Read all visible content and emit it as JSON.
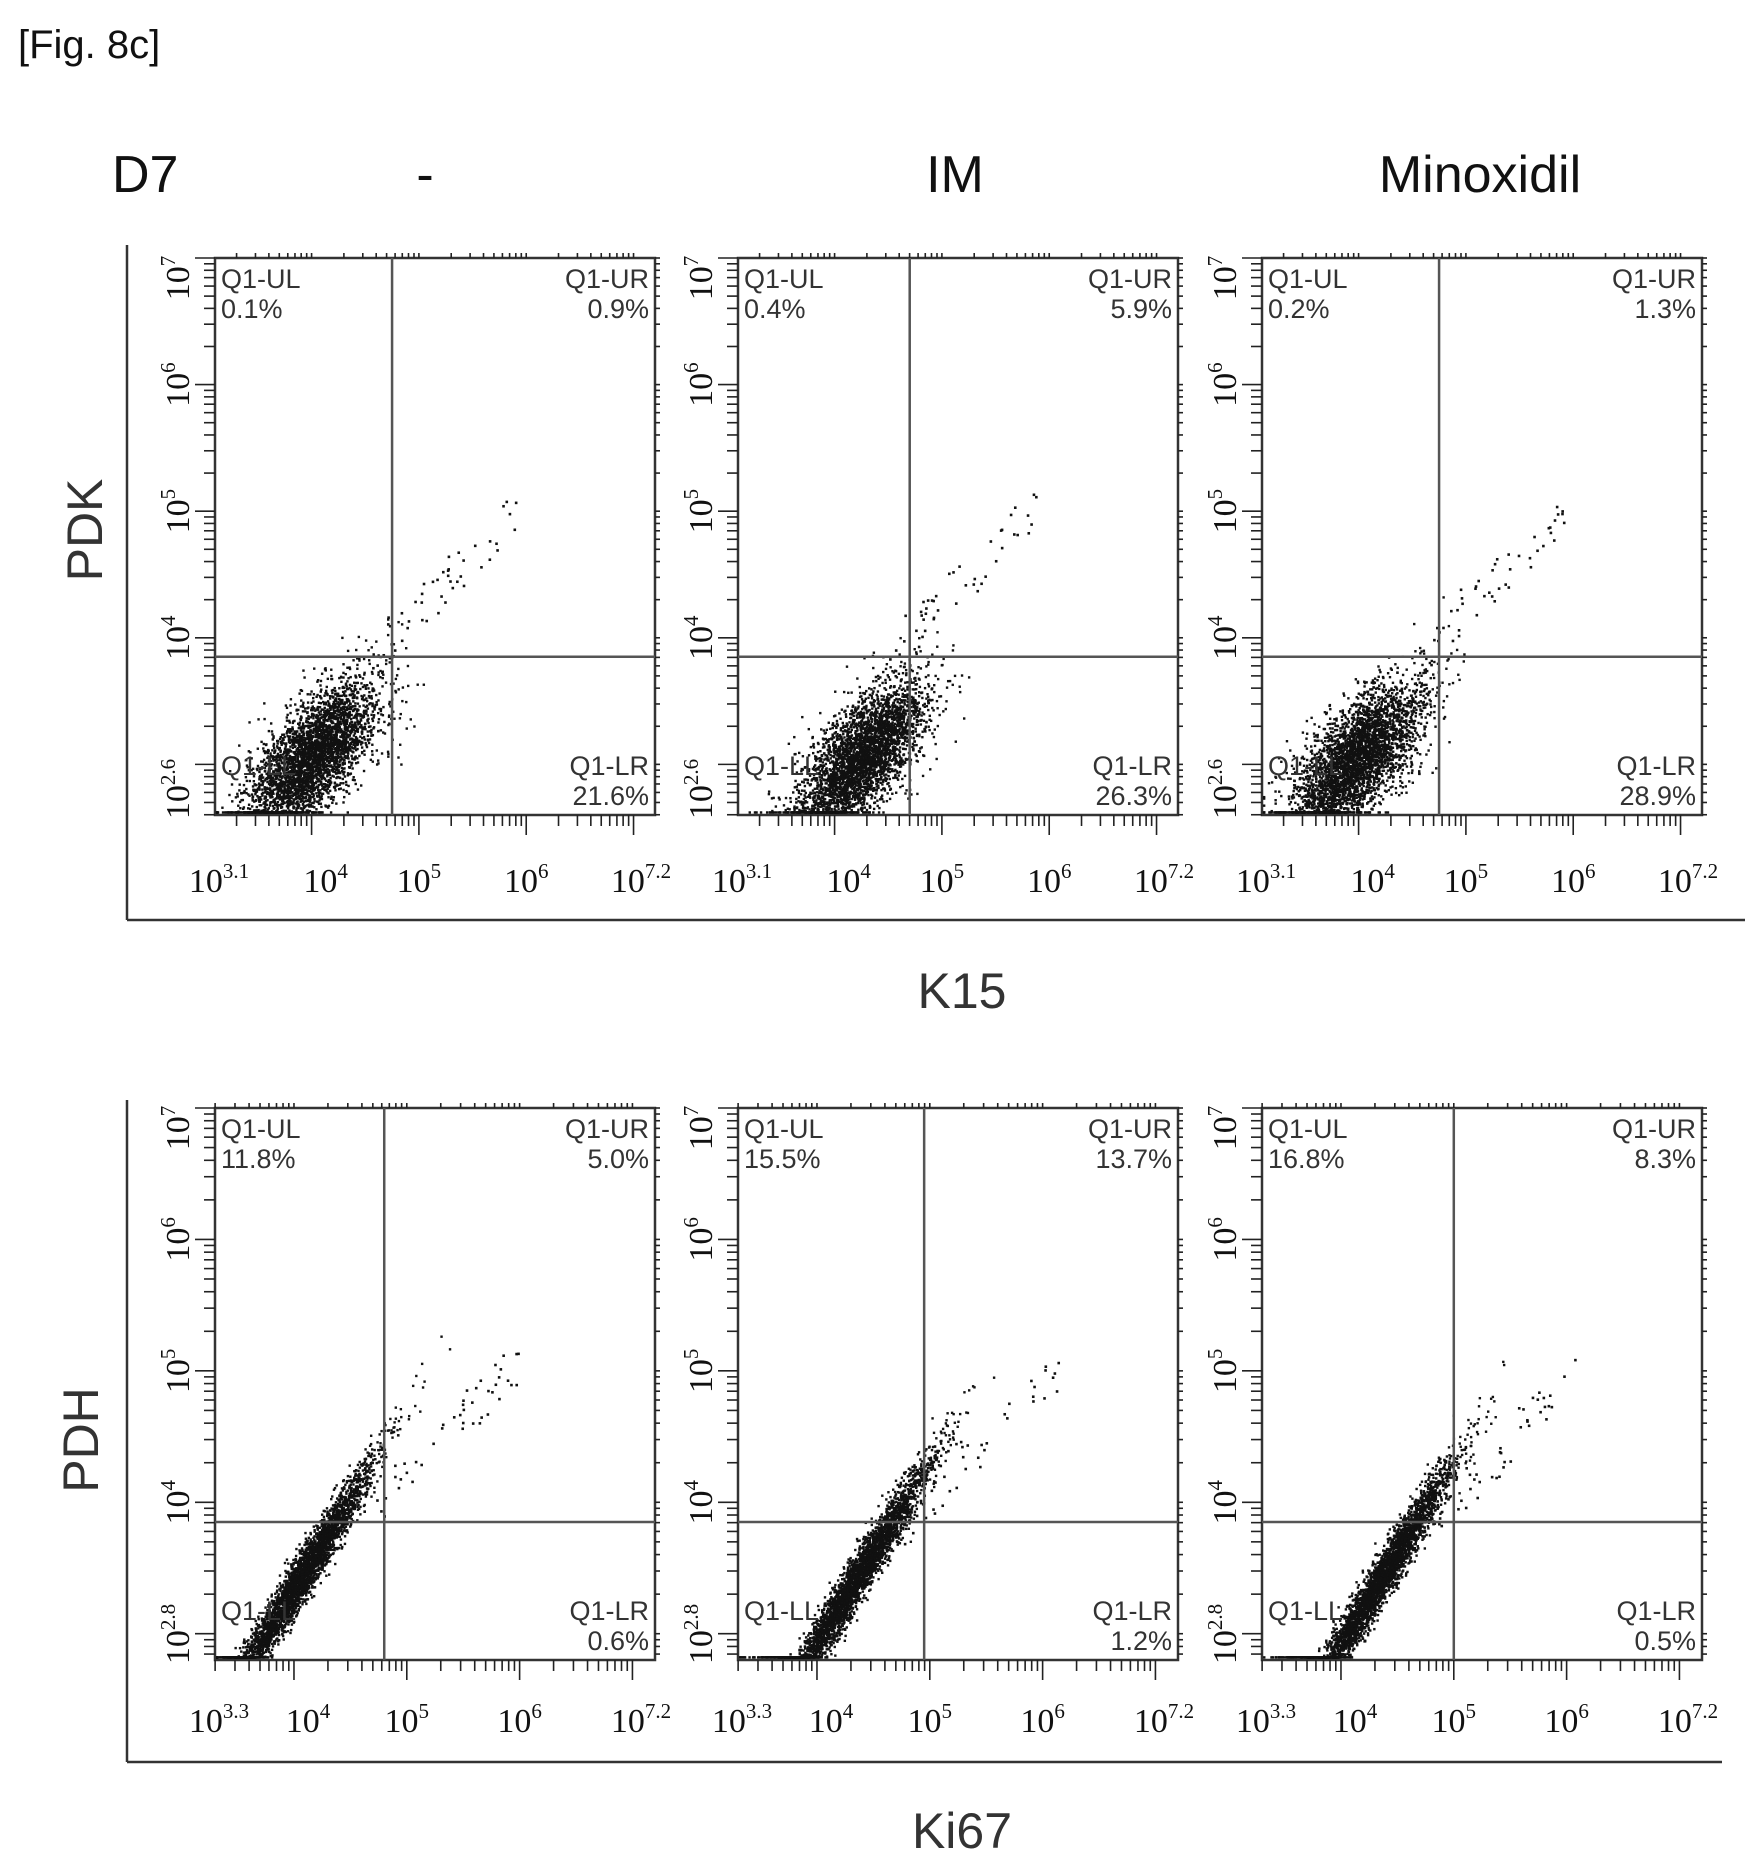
{
  "figure_label": "[Fig. 8c]",
  "day_label": "D7",
  "chart_data": [
    {
      "type": "scatter",
      "condition": "-",
      "row": 0,
      "col": 0,
      "xlabel": "K15",
      "ylabel": "PDK",
      "x_range_log10": [
        3.1,
        7.2
      ],
      "y_range_log10": [
        2.6,
        7.0
      ],
      "x_ticks": [
        {
          "base": "10",
          "exp": "3.1",
          "v": 3.1
        },
        {
          "base": "10",
          "exp": "4",
          "v": 4
        },
        {
          "base": "10",
          "exp": "5",
          "v": 5
        },
        {
          "base": "10",
          "exp": "6",
          "v": 6
        },
        {
          "base": "10",
          "exp": "7.2",
          "v": 7.2
        }
      ],
      "y_ticks": [
        {
          "base": "10",
          "exp": "2.6",
          "v": 2.6
        },
        {
          "base": "10",
          "exp": "4",
          "v": 4
        },
        {
          "base": "10",
          "exp": "5",
          "v": 5
        },
        {
          "base": "10",
          "exp": "6",
          "v": 6
        },
        {
          "base": "10",
          "exp": "7",
          "v": 7
        }
      ],
      "gate_x_log10": 4.75,
      "gate_y_log10": 3.85,
      "quadrants": {
        "UL": {
          "name": "Q1-UL",
          "value": "0.1%"
        },
        "UR": {
          "name": "Q1-UR",
          "value": "0.9%"
        },
        "LL": {
          "name": "Q1-LL",
          "value": ""
        },
        "LR": {
          "name": "Q1-LR",
          "value": "21.6%"
        }
      }
    },
    {
      "type": "scatter",
      "condition": "IM",
      "row": 0,
      "col": 1,
      "xlabel": "K15",
      "ylabel": "PDK",
      "x_range_log10": [
        3.1,
        7.2
      ],
      "y_range_log10": [
        2.6,
        7.0
      ],
      "x_ticks": [
        {
          "base": "10",
          "exp": "3.1",
          "v": 3.1
        },
        {
          "base": "10",
          "exp": "4",
          "v": 4
        },
        {
          "base": "10",
          "exp": "5",
          "v": 5
        },
        {
          "base": "10",
          "exp": "6",
          "v": 6
        },
        {
          "base": "10",
          "exp": "7.2",
          "v": 7.2
        }
      ],
      "y_ticks": [
        {
          "base": "10",
          "exp": "2.6",
          "v": 2.6
        },
        {
          "base": "10",
          "exp": "4",
          "v": 4
        },
        {
          "base": "10",
          "exp": "5",
          "v": 5
        },
        {
          "base": "10",
          "exp": "6",
          "v": 6
        },
        {
          "base": "10",
          "exp": "7",
          "v": 7
        }
      ],
      "gate_x_log10": 4.7,
      "gate_y_log10": 3.85,
      "quadrants": {
        "UL": {
          "name": "Q1-UL",
          "value": "0.4%"
        },
        "UR": {
          "name": "Q1-UR",
          "value": "5.9%"
        },
        "LL": {
          "name": "Q1-LL",
          "value": ""
        },
        "LR": {
          "name": "Q1-LR",
          "value": "26.3%"
        }
      }
    },
    {
      "type": "scatter",
      "condition": "Minoxidil",
      "row": 0,
      "col": 2,
      "xlabel": "K15",
      "ylabel": "PDK",
      "x_range_log10": [
        3.1,
        7.2
      ],
      "y_range_log10": [
        2.6,
        7.0
      ],
      "x_ticks": [
        {
          "base": "10",
          "exp": "3.1",
          "v": 3.1
        },
        {
          "base": "10",
          "exp": "4",
          "v": 4
        },
        {
          "base": "10",
          "exp": "5",
          "v": 5
        },
        {
          "base": "10",
          "exp": "6",
          "v": 6
        },
        {
          "base": "10",
          "exp": "7.2",
          "v": 7.2
        }
      ],
      "y_ticks": [
        {
          "base": "10",
          "exp": "2.6",
          "v": 2.6
        },
        {
          "base": "10",
          "exp": "4",
          "v": 4
        },
        {
          "base": "10",
          "exp": "5",
          "v": 5
        },
        {
          "base": "10",
          "exp": "6",
          "v": 6
        },
        {
          "base": "10",
          "exp": "7",
          "v": 7
        }
      ],
      "gate_x_log10": 4.75,
      "gate_y_log10": 3.85,
      "quadrants": {
        "UL": {
          "name": "Q1-UL",
          "value": "0.2%"
        },
        "UR": {
          "name": "Q1-UR",
          "value": "1.3%"
        },
        "LL": {
          "name": "Q1-LL",
          "value": ""
        },
        "LR": {
          "name": "Q1-LR",
          "value": "28.9%"
        }
      }
    },
    {
      "type": "scatter",
      "condition": "-",
      "row": 1,
      "col": 0,
      "xlabel": "Ki67",
      "ylabel": "PDH",
      "x_range_log10": [
        3.3,
        7.2
      ],
      "y_range_log10": [
        2.8,
        7.0
      ],
      "x_ticks": [
        {
          "base": "10",
          "exp": "3.3",
          "v": 3.3
        },
        {
          "base": "10",
          "exp": "4",
          "v": 4
        },
        {
          "base": "10",
          "exp": "5",
          "v": 5
        },
        {
          "base": "10",
          "exp": "6",
          "v": 6
        },
        {
          "base": "10",
          "exp": "7.2",
          "v": 7.2
        }
      ],
      "y_ticks": [
        {
          "base": "10",
          "exp": "2.8",
          "v": 2.8
        },
        {
          "base": "10",
          "exp": "4",
          "v": 4
        },
        {
          "base": "10",
          "exp": "5",
          "v": 5
        },
        {
          "base": "10",
          "exp": "6",
          "v": 6
        },
        {
          "base": "10",
          "exp": "7",
          "v": 7
        }
      ],
      "gate_x_log10": 4.8,
      "gate_y_log10": 3.85,
      "quadrants": {
        "UL": {
          "name": "Q1-UL",
          "value": "11.8%"
        },
        "UR": {
          "name": "Q1-UR",
          "value": "5.0%"
        },
        "LL": {
          "name": "Q1-LL",
          "value": ""
        },
        "LR": {
          "name": "Q1-LR",
          "value": "0.6%"
        }
      }
    },
    {
      "type": "scatter",
      "condition": "IM",
      "row": 1,
      "col": 1,
      "xlabel": "Ki67",
      "ylabel": "PDH",
      "x_range_log10": [
        3.3,
        7.2
      ],
      "y_range_log10": [
        2.8,
        7.0
      ],
      "x_ticks": [
        {
          "base": "10",
          "exp": "3.3",
          "v": 3.3
        },
        {
          "base": "10",
          "exp": "4",
          "v": 4
        },
        {
          "base": "10",
          "exp": "5",
          "v": 5
        },
        {
          "base": "10",
          "exp": "6",
          "v": 6
        },
        {
          "base": "10",
          "exp": "7.2",
          "v": 7.2
        }
      ],
      "y_ticks": [
        {
          "base": "10",
          "exp": "2.8",
          "v": 2.8
        },
        {
          "base": "10",
          "exp": "4",
          "v": 4
        },
        {
          "base": "10",
          "exp": "5",
          "v": 5
        },
        {
          "base": "10",
          "exp": "6",
          "v": 6
        },
        {
          "base": "10",
          "exp": "7",
          "v": 7
        }
      ],
      "gate_x_log10": 4.95,
      "gate_y_log10": 3.85,
      "quadrants": {
        "UL": {
          "name": "Q1-UL",
          "value": "15.5%"
        },
        "UR": {
          "name": "Q1-UR",
          "value": "13.7%"
        },
        "LL": {
          "name": "Q1-LL",
          "value": ""
        },
        "LR": {
          "name": "Q1-LR",
          "value": "1.2%"
        }
      }
    },
    {
      "type": "scatter",
      "condition": "Minoxidil",
      "row": 1,
      "col": 2,
      "xlabel": "Ki67",
      "ylabel": "PDH",
      "x_range_log10": [
        3.3,
        7.2
      ],
      "y_range_log10": [
        2.8,
        7.0
      ],
      "x_ticks": [
        {
          "base": "10",
          "exp": "3.3",
          "v": 3.3
        },
        {
          "base": "10",
          "exp": "4",
          "v": 4
        },
        {
          "base": "10",
          "exp": "5",
          "v": 5
        },
        {
          "base": "10",
          "exp": "6",
          "v": 6
        },
        {
          "base": "10",
          "exp": "7.2",
          "v": 7.2
        }
      ],
      "y_ticks": [
        {
          "base": "10",
          "exp": "2.8",
          "v": 2.8
        },
        {
          "base": "10",
          "exp": "4",
          "v": 4
        },
        {
          "base": "10",
          "exp": "5",
          "v": 5
        },
        {
          "base": "10",
          "exp": "6",
          "v": 6
        },
        {
          "base": "10",
          "exp": "7",
          "v": 7
        }
      ],
      "gate_x_log10": 5.0,
      "gate_y_log10": 3.85,
      "quadrants": {
        "UL": {
          "name": "Q1-UL",
          "value": "16.8%"
        },
        "UR": {
          "name": "Q1-UR",
          "value": "8.3%"
        },
        "LL": {
          "name": "Q1-LL",
          "value": ""
        },
        "LR": {
          "name": "Q1-LR",
          "value": "0.5%"
        }
      }
    }
  ]
}
